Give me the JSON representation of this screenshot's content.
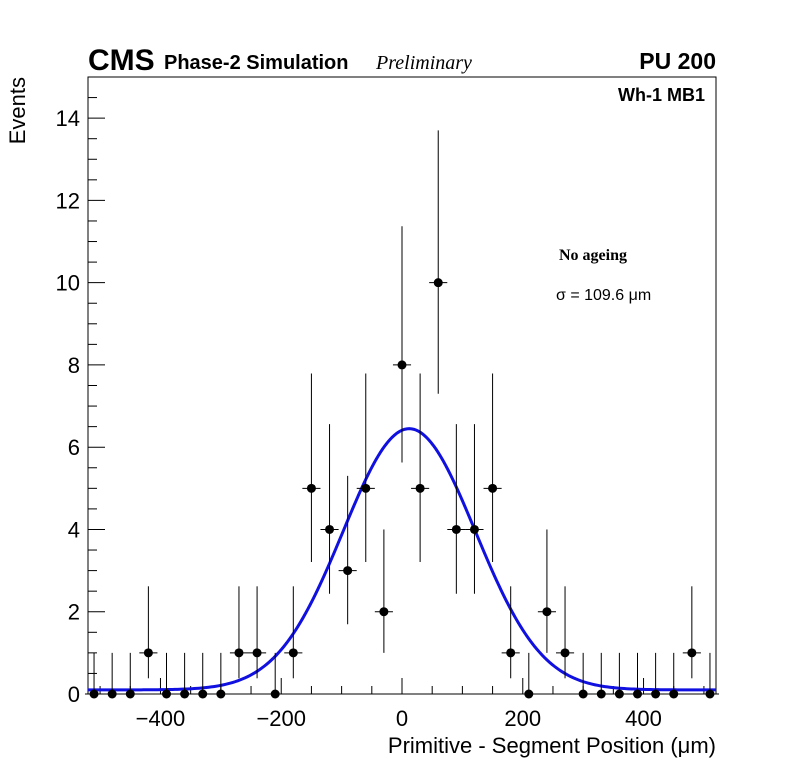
{
  "chart_data": {
    "type": "scatter",
    "title": {
      "experiment": "CMS",
      "subtitle": "Phase-2 Simulation",
      "status": "Preliminary",
      "pileup": "PU 200"
    },
    "region": "Wh-1 MB1",
    "annotation": {
      "condition": "No ageing",
      "sigma_text": "σ = 109.6 μm"
    },
    "xlabel": "Primitive - Segment Position (μm)",
    "ylabel": "Events",
    "xlim": [
      -520,
      520
    ],
    "ylim": [
      0,
      15
    ],
    "x_ticks": [
      -400,
      -200,
      0,
      200,
      400
    ],
    "x_tick_labels": [
      "−400",
      "−200",
      "0",
      "200",
      "400"
    ],
    "y_ticks": [
      0,
      2,
      4,
      6,
      8,
      10,
      12,
      14
    ],
    "y_tick_labels": [
      "0",
      "2",
      "4",
      "6",
      "8",
      "10",
      "12",
      "14"
    ],
    "bin_width": 30,
    "series": [
      {
        "name": "Simulation",
        "style": "markers_with_errors",
        "color": "#000000",
        "x": [
          -510,
          -480,
          -450,
          -420,
          -390,
          -360,
          -330,
          -300,
          -270,
          -240,
          -210,
          -180,
          -150,
          -120,
          -90,
          -60,
          -30,
          0,
          30,
          60,
          90,
          120,
          150,
          180,
          210,
          240,
          270,
          300,
          330,
          360,
          390,
          420,
          450,
          480,
          510
        ],
        "y": [
          0,
          0,
          0,
          1,
          0,
          0,
          0,
          0,
          1,
          1,
          0,
          1,
          5,
          4,
          3,
          5,
          2,
          8,
          5,
          10,
          4,
          4,
          5,
          1,
          0,
          2,
          1,
          0,
          0,
          0,
          0,
          0,
          0,
          1,
          0
        ]
      },
      {
        "name": "Gaussian fit",
        "style": "line",
        "color": "#1010e0",
        "function": "gaussian_plus_constant",
        "amplitude": 6.35,
        "mean": 12,
        "sigma": 109.6,
        "baseline": 0.1
      }
    ]
  }
}
